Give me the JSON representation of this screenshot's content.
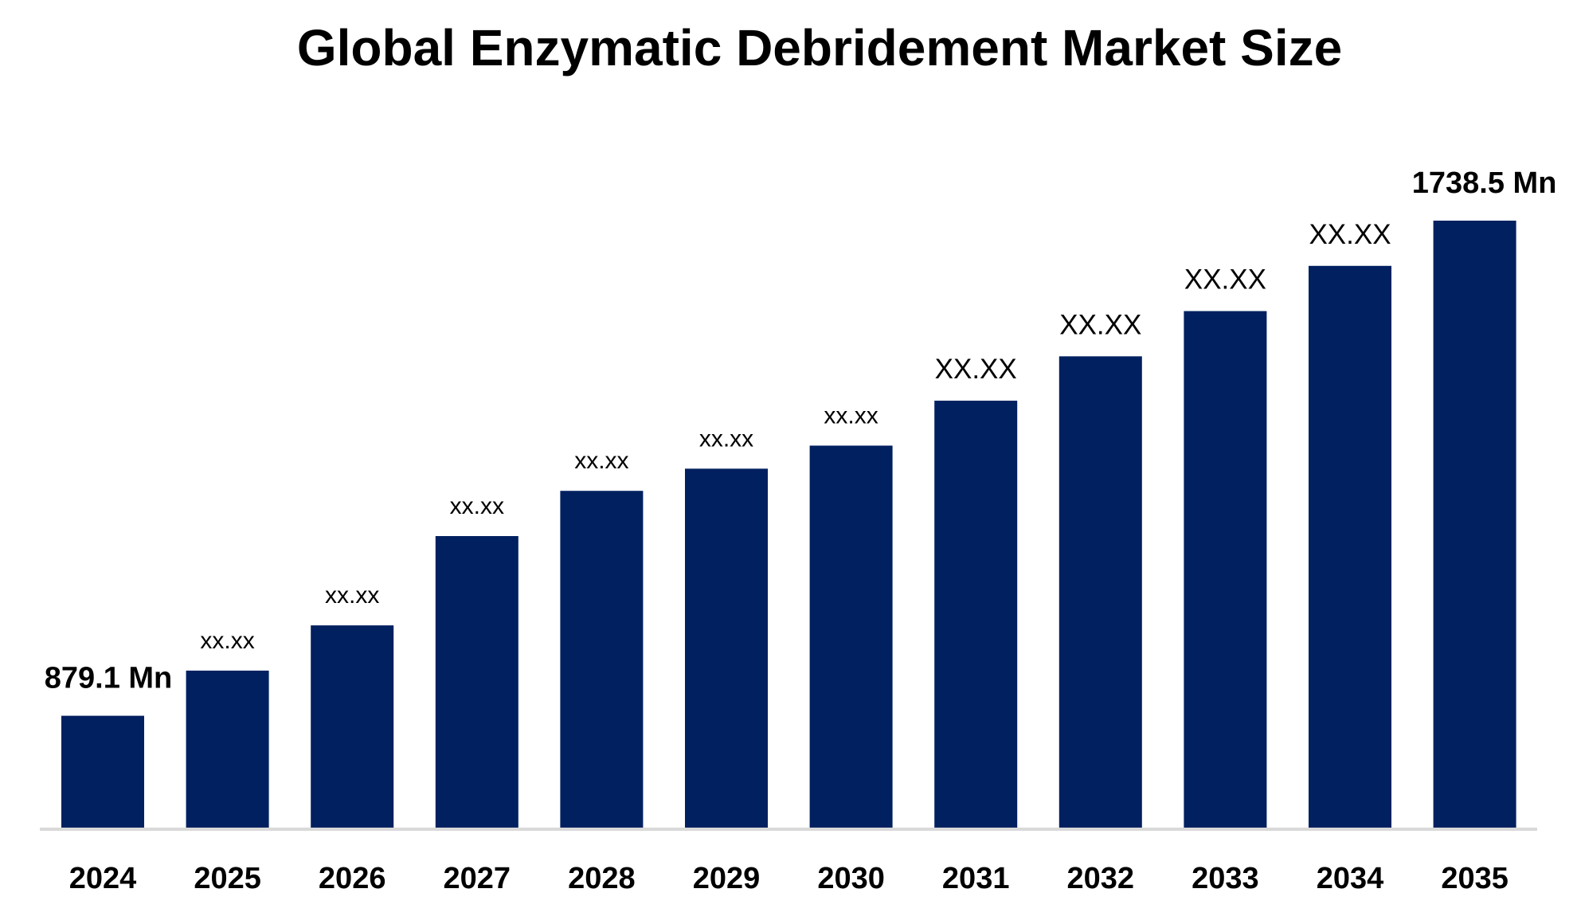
{
  "chart_data": {
    "type": "bar",
    "title": "Global Enzymatic Debridement Market Size",
    "xlabel": "",
    "ylabel": "",
    "categories": [
      "2024",
      "2025",
      "2026",
      "2027",
      "2028",
      "2029",
      "2030",
      "2031",
      "2032",
      "2033",
      "2034",
      "2035"
    ],
    "values": [
      879.1,
      957.5,
      1036,
      1191,
      1269.5,
      1308,
      1348,
      1426,
      1503,
      1581.5,
      1660,
      1738.5
    ],
    "data_labels": [
      "879.1 Mn",
      "xx.xx",
      "xx.xx",
      "xx.xx",
      "xx.xx",
      "xx.xx",
      "xx.xx",
      "XX.XX",
      "XX.XX",
      "XX.XX",
      "XX.XX",
      "1738.5 Mn"
    ],
    "ylim": [
      685,
      1738.5
    ],
    "grid": false,
    "legend": "none",
    "bar_color": "#002060",
    "axis_color": "#d9d9d9"
  }
}
